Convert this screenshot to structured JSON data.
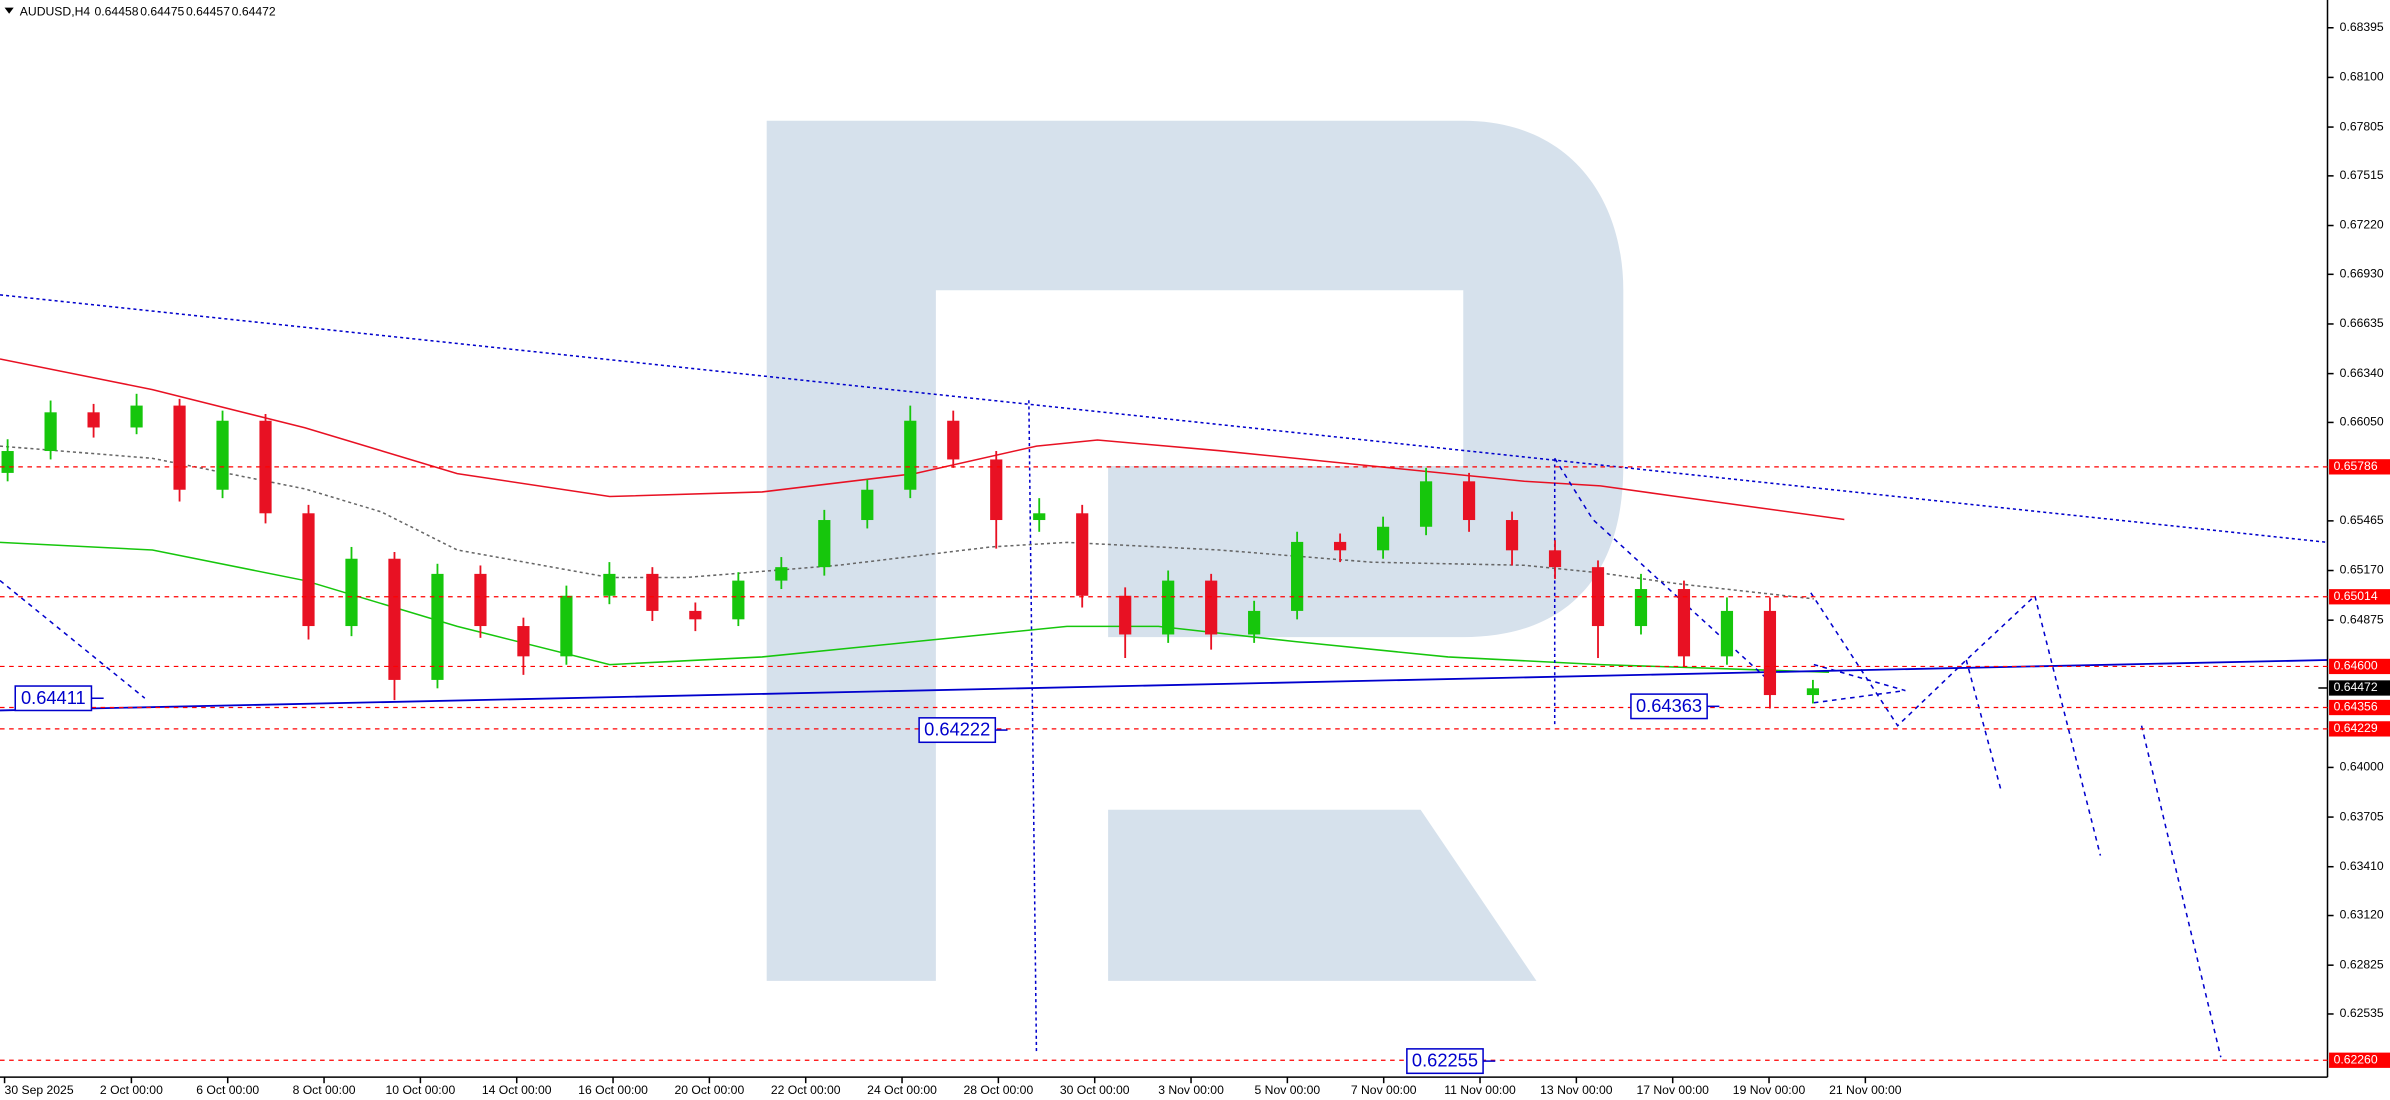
{
  "chart_data": {
    "type": "candlestick",
    "title": "AUDUSD,H4",
    "header_values": [
      0.64458,
      0.64475,
      0.64457,
      0.64472
    ],
    "x_labels": [
      "30 Sep 2025",
      "2 Oct 00:00",
      "6 Oct 00:00",
      "8 Oct 00:00",
      "10 Oct 00:00",
      "14 Oct 00:00",
      "16 Oct 00:00",
      "20 Oct 00:00",
      "22 Oct 00:00",
      "24 Oct 00:00",
      "28 Oct 00:00",
      "30 Oct 00:00",
      "3 Nov 00:00",
      "5 Nov 00:00",
      "7 Nov 00:00",
      "11 Nov 00:00",
      "13 Nov 00:00",
      "17 Nov 00:00",
      "19 Nov 00:00",
      "21 Nov 00:00"
    ],
    "candles": [
      [
        0.6575,
        0.6595,
        0.657,
        0.6588
      ],
      [
        0.6588,
        0.6618,
        0.6583,
        0.6611
      ],
      [
        0.6611,
        0.6616,
        0.6596,
        0.6602
      ],
      [
        0.6602,
        0.6622,
        0.6598,
        0.6615
      ],
      [
        0.6615,
        0.6619,
        0.6558,
        0.6565
      ],
      [
        0.6565,
        0.6612,
        0.656,
        0.6606
      ],
      [
        0.6606,
        0.661,
        0.6545,
        0.6551
      ],
      [
        0.6551,
        0.6556,
        0.6476,
        0.6484
      ],
      [
        0.6484,
        0.6531,
        0.6478,
        0.6524
      ],
      [
        0.6524,
        0.6528,
        0.644,
        0.6452
      ],
      [
        0.6452,
        0.6521,
        0.6447,
        0.6515
      ],
      [
        0.6515,
        0.652,
        0.6477,
        0.6484
      ],
      [
        0.6484,
        0.6489,
        0.6455,
        0.6466
      ],
      [
        0.6466,
        0.6508,
        0.6461,
        0.6502
      ],
      [
        0.6502,
        0.6522,
        0.6497,
        0.6515
      ],
      [
        0.6515,
        0.6519,
        0.6487,
        0.6493
      ],
      [
        0.6493,
        0.6498,
        0.6481,
        0.6488
      ],
      [
        0.6488,
        0.6516,
        0.6484,
        0.6511
      ],
      [
        0.6511,
        0.6525,
        0.6506,
        0.6519
      ],
      [
        0.6519,
        0.6553,
        0.6514,
        0.6547
      ],
      [
        0.6547,
        0.6571,
        0.6542,
        0.6565
      ],
      [
        0.6565,
        0.6615,
        0.656,
        0.6606
      ],
      [
        0.6606,
        0.6612,
        0.6578,
        0.6583
      ],
      [
        0.6583,
        0.6588,
        0.653,
        0.6547
      ],
      [
        0.6547,
        0.656,
        0.654,
        0.6551
      ],
      [
        0.6551,
        0.6556,
        0.6495,
        0.6502
      ],
      [
        0.6502,
        0.6507,
        0.6465,
        0.6479
      ],
      [
        0.6479,
        0.6517,
        0.6474,
        0.6511
      ],
      [
        0.6511,
        0.6515,
        0.647,
        0.6479
      ],
      [
        0.6479,
        0.6499,
        0.6474,
        0.6493
      ],
      [
        0.6493,
        0.654,
        0.6488,
        0.6534
      ],
      [
        0.6534,
        0.6539,
        0.6522,
        0.6529
      ],
      [
        0.6529,
        0.6549,
        0.6524,
        0.6543
      ],
      [
        0.6543,
        0.6578,
        0.6538,
        0.657
      ],
      [
        0.657,
        0.6575,
        0.654,
        0.6547
      ],
      [
        0.6547,
        0.6552,
        0.652,
        0.6529
      ],
      [
        0.6529,
        0.6535,
        0.6512,
        0.6519
      ],
      [
        0.6519,
        0.6523,
        0.6465,
        0.6484
      ],
      [
        0.6484,
        0.6515,
        0.6479,
        0.6506
      ],
      [
        0.6506,
        0.6511,
        0.646,
        0.6466
      ],
      [
        0.6466,
        0.6501,
        0.6461,
        0.6493
      ],
      [
        0.6493,
        0.6501,
        0.6435,
        0.6443
      ],
      [
        0.6443,
        0.6452,
        0.6438,
        0.6447
      ]
    ],
    "up_color": "#16c60c",
    "down_color": "#e81123",
    "ylim": [
      0.6216,
      0.6856
    ],
    "yticks": [
      0.68395,
      {
        "value": 0.681,
        "label": "0.68100"
      },
      0.67805,
      0.67515,
      {
        "value": 0.6722,
        "label": "0.67220"
      },
      {
        "value": 0.6693,
        "label": "0.66930"
      },
      0.66635,
      {
        "value": 0.6634,
        "label": "0.66340"
      },
      {
        "value": 0.6605,
        "label": "0.66050"
      },
      0.65465,
      {
        "value": 0.6517,
        "label": "0.65170"
      },
      0.64875,
      {
        "value": 0.64,
        "label": "0.64000"
      },
      0.63705,
      {
        "value": 0.6341,
        "label": "0.63410"
      },
      {
        "value": 0.6312,
        "label": "0.63120"
      },
      0.62825,
      0.62535
    ],
    "levels": [
      0.65786,
      0.65014,
      {
        "value": 0.646,
        "label": "0.64600"
      },
      0.64356,
      0.64229,
      {
        "value": 0.6226,
        "label": "0.62260"
      }
    ],
    "level_color": "#ff0000",
    "current_price": 0.64472,
    "annotations": [
      0.64411,
      0.64222,
      0.64363,
      0.62255
    ],
    "annotation_color": "#0000cc"
  }
}
